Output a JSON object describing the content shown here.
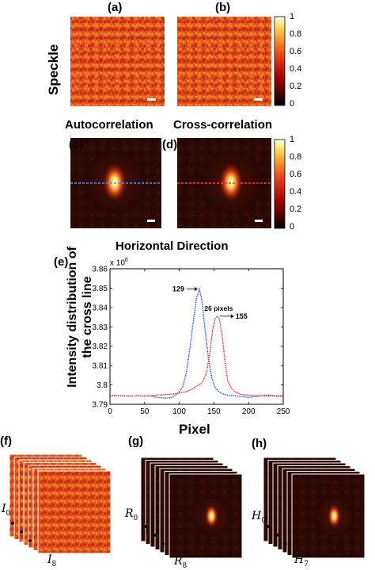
{
  "panels": {
    "a": "(a)",
    "b": "(b)",
    "c": "(c)",
    "d": "(d)",
    "e": "(e)",
    "f": "(f)",
    "g": "(g)",
    "h": "(h)"
  },
  "row_label": "Speckle",
  "column_titles": {
    "auto": "Autocorrelation",
    "cross": "Cross-correlation"
  },
  "colorbar_ticks": [
    "1",
    "0.8",
    "0.6",
    "0.4",
    "0.2",
    "0"
  ],
  "stack_labels": {
    "f": {
      "top": "I",
      "top_sub": "0",
      "bottom": "I",
      "bottom_sub": "8"
    },
    "g": {
      "top": "R",
      "top_sub": "0",
      "bottom": "R",
      "bottom_sub": "8"
    },
    "h": {
      "top": "H",
      "top_sub": "0",
      "bottom": "H",
      "bottom_sub": "7"
    }
  },
  "colors": {
    "autocorrelation_line": "#3355dd",
    "crosscorrelation_line": "#dd3333",
    "speckle_base": "#e8521c",
    "correlation_base": "#2a0805"
  },
  "chart_data": {
    "type": "line",
    "title": "Horizontal Direction",
    "xlabel": "Pixel",
    "ylabel": "Intensity distribution of the cross line",
    "y_multiplier": "x 10",
    "y_multiplier_exp": "6",
    "xlim": [
      0,
      250
    ],
    "ylim": [
      3.79,
      3.86
    ],
    "xticks": [
      "0",
      "50",
      "100",
      "150",
      "200",
      "250"
    ],
    "yticks": [
      "3.79",
      "3.8",
      "3.81",
      "3.82",
      "3.83",
      "3.84",
      "3.85",
      "3.86"
    ],
    "series": [
      {
        "color": "#3355dd",
        "x": [
          0,
          10,
          20,
          30,
          40,
          50,
          60,
          70,
          80,
          90,
          100,
          105,
          110,
          115,
          120,
          125,
          129,
          133,
          137,
          142,
          147,
          152,
          157,
          162,
          170,
          180,
          190,
          200,
          210,
          220,
          230,
          240,
          250
        ],
        "y": [
          3.7945,
          3.7945,
          3.7943,
          3.7942,
          3.7944,
          3.7943,
          3.7942,
          3.7935,
          3.7932,
          3.7935,
          3.7965,
          3.799,
          3.806,
          3.818,
          3.832,
          3.845,
          3.8495,
          3.843,
          3.829,
          3.814,
          3.8035,
          3.7985,
          3.7965,
          3.7955,
          3.7947,
          3.7945,
          3.794,
          3.7936,
          3.794,
          3.7945,
          3.7948,
          3.7942,
          3.7942
        ]
      },
      {
        "color": "#dd3333",
        "x": [
          0,
          10,
          20,
          30,
          40,
          50,
          60,
          70,
          80,
          90,
          100,
          110,
          120,
          127,
          133,
          139,
          144,
          148,
          152,
          155,
          158,
          162,
          166,
          170,
          175,
          180,
          190,
          200,
          210,
          220,
          230,
          240,
          250
        ],
        "y": [
          3.7943,
          3.7945,
          3.7944,
          3.7943,
          3.7944,
          3.7942,
          3.7945,
          3.7948,
          3.795,
          3.7953,
          3.7958,
          3.7965,
          3.7982,
          3.7998,
          3.801,
          3.806,
          3.816,
          3.828,
          3.8345,
          3.8355,
          3.834,
          3.825,
          3.812,
          3.802,
          3.7985,
          3.7965,
          3.795,
          3.7948,
          3.7944,
          3.7944,
          3.7942,
          3.7944,
          3.7944
        ]
      }
    ],
    "annotations": [
      {
        "text": "129",
        "x": 129,
        "y": 3.8495,
        "arrow": "right"
      },
      {
        "text": "26 pixels",
        "x": 150,
        "y": 3.8395
      },
      {
        "text": "155",
        "x": 155,
        "y": 3.8355,
        "arrow": "left"
      }
    ]
  }
}
